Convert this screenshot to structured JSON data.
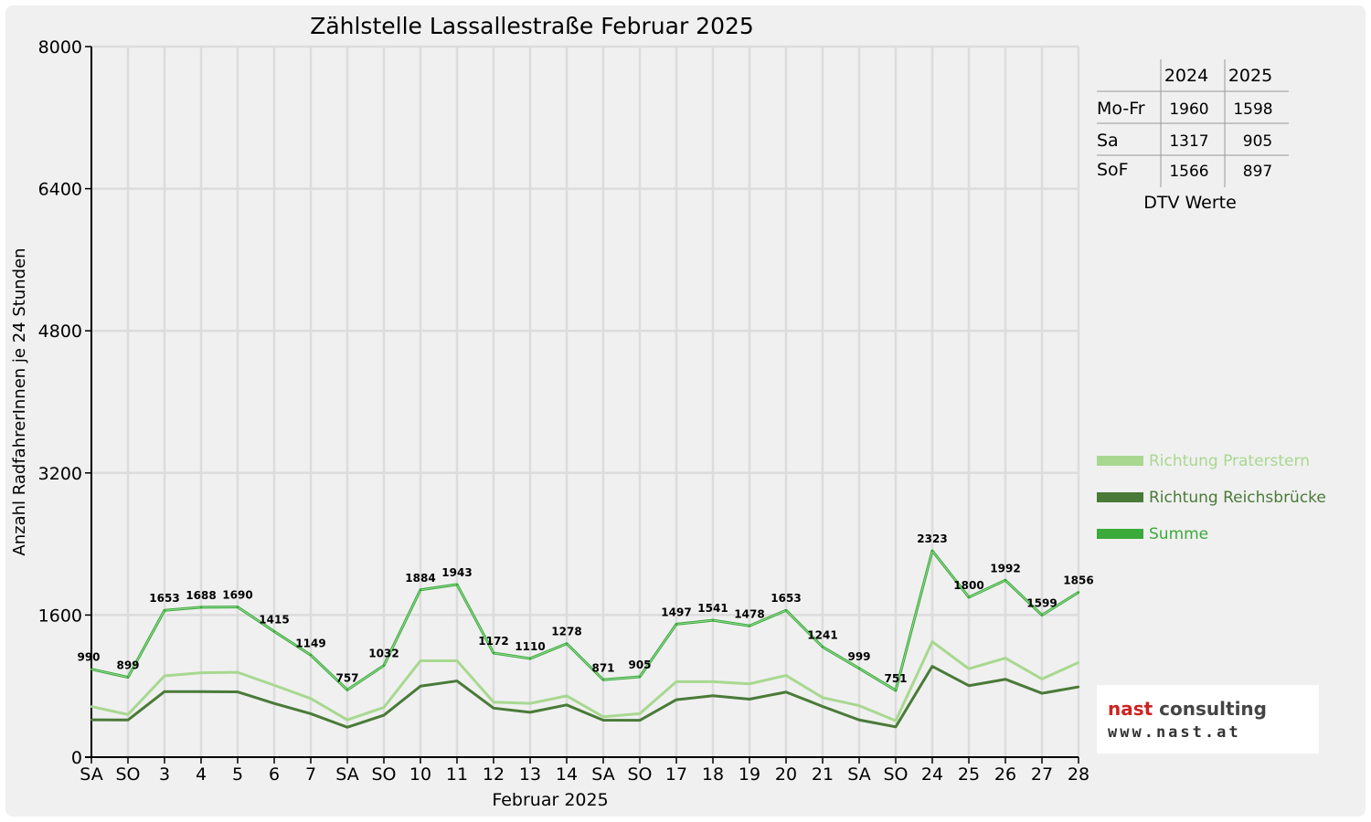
{
  "chart_data": {
    "type": "line",
    "title": "Zählstelle Lassallestraße Februar 2025",
    "ylabel": "Anzahl RadfahrerInnen je 24 Stunden",
    "xlabel": "Februar 2025",
    "ylim": [
      0,
      8000
    ],
    "yticks": [
      "0",
      "1600",
      "3200",
      "4800",
      "6400",
      "8000"
    ],
    "categories": [
      "SA",
      "SO",
      "3",
      "4",
      "5",
      "6",
      "7",
      "SA",
      "SO",
      "10",
      "11",
      "12",
      "13",
      "14",
      "SA",
      "SO",
      "17",
      "18",
      "19",
      "20",
      "21",
      "SA",
      "SO",
      "24",
      "25",
      "26",
      "27",
      "28"
    ],
    "sunday_indices": [
      1,
      8,
      15,
      22
    ],
    "series": [
      {
        "name": "Richtung Praterstern",
        "color": "#a8d890",
        "values": [
          570,
          480,
          915,
          950,
          955,
          810,
          660,
          420,
          560,
          1085,
          1085,
          620,
          605,
          690,
          455,
          490,
          850,
          850,
          825,
          920,
          670,
          580,
          410,
          1300,
          995,
          1115,
          880,
          1065
        ]
      },
      {
        "name": "Richtung Reichsbrücke",
        "color": "#4a7a38",
        "values": [
          420,
          419,
          738,
          738,
          735,
          605,
          489,
          337,
          472,
          799,
          858,
          552,
          505,
          588,
          416,
          415,
          647,
          691,
          653,
          733,
          571,
          419,
          341,
          1023,
          805,
          877,
          719,
          791
        ]
      },
      {
        "name": "Summe",
        "color": "#3aaa3a",
        "values": [
          990,
          899,
          1653,
          1688,
          1690,
          1415,
          1149,
          757,
          1032,
          1884,
          1943,
          1172,
          1110,
          1278,
          871,
          905,
          1497,
          1541,
          1478,
          1653,
          1241,
          999,
          751,
          2323,
          1800,
          1992,
          1599,
          1856
        ]
      }
    ],
    "data_labels": [
      "990",
      "899",
      "1653",
      "1688",
      "1690",
      "1415",
      "1149",
      "757",
      "1032",
      "1884",
      "1943",
      "1172",
      "1110",
      "1278",
      "871",
      "905",
      "1497",
      "1541",
      "1478",
      "1653",
      "1241",
      "999",
      "751",
      "2323",
      "1800",
      "1992",
      "1599",
      "1856"
    ],
    "grid": true,
    "legend_placement": "right"
  },
  "dtv_table": {
    "years": [
      "2024",
      "2025"
    ],
    "rows": [
      {
        "label": "Mo-Fr",
        "v2024": "1960",
        "v2025": "1598"
      },
      {
        "label": "Sa",
        "v2024": "1317",
        "v2025": "905"
      },
      {
        "label": "SoF",
        "v2024": "1566",
        "v2025": "897"
      }
    ],
    "caption": "DTV Werte"
  },
  "logo": {
    "line1_a": "nast",
    "line1_b": "consulting",
    "line2": "www.nast.at",
    "color_a": "#cc2222",
    "color_b": "#444444"
  },
  "colors": {
    "sunday": "#ff0000"
  }
}
